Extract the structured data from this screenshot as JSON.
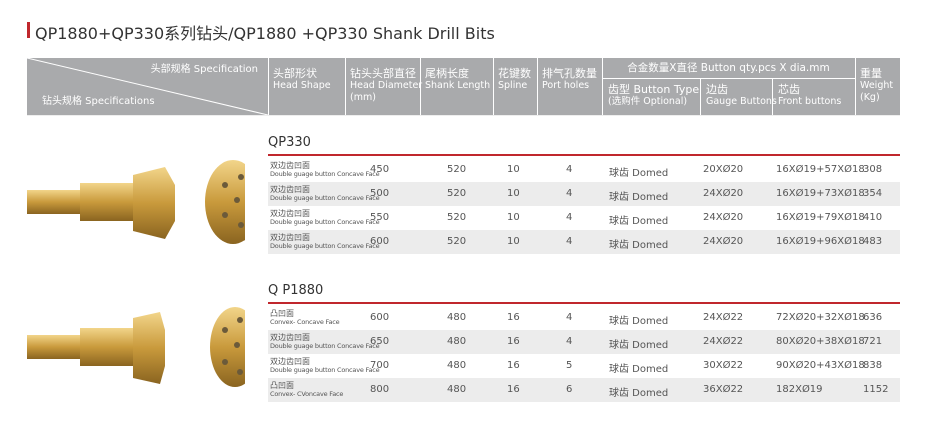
{
  "title": "QP1880+QP330系列钻头/QP1880 +QP330 Shank Drill Bits",
  "header": {
    "corner_top": "头部规格 Specification",
    "corner_bottom": "钻头规格 Specifications",
    "columns": [
      [
        "头部形状",
        "Head Shape"
      ],
      [
        "钻头头部直径",
        "Head Diameter",
        "(mm)"
      ],
      [
        "尾柄长度",
        "Shank Length"
      ],
      [
        "花键数",
        "Spline"
      ],
      [
        "排气孔数量",
        "Port holes"
      ]
    ],
    "group": "合金数量X直径 Button qty.pcs X dia.mm",
    "subcolumns": [
      [
        "齿型 Button Type",
        "(选购件 Optional)"
      ],
      [
        "边齿",
        "Gauge Buttons"
      ],
      [
        "芯齿",
        "Front buttons"
      ]
    ],
    "weight": [
      "重量",
      "Weight",
      "(Kg)"
    ]
  },
  "sections": [
    {
      "name": "QP330",
      "rows": [
        {
          "shape": [
            "双边齿凹面",
            "Double guage button Concave Face"
          ],
          "cells": [
            450,
            520,
            10,
            4,
            "球齿 Domed",
            "20XØ20",
            "16XØ19+57XØ18",
            308
          ]
        },
        {
          "shape": [
            "双边齿凹面",
            "Double guage button Concave Face"
          ],
          "cells": [
            500,
            520,
            10,
            4,
            "球齿 Domed",
            "24XØ20",
            "16XØ19+73XØ18",
            354
          ]
        },
        {
          "shape": [
            "双边齿凹面",
            "Double guage button Concave Face"
          ],
          "cells": [
            550,
            520,
            10,
            4,
            "球齿 Domed",
            "24XØ20",
            "16XØ19+79XØ18",
            410
          ]
        },
        {
          "shape": [
            "双边齿凹面",
            "Double guage button Concave Face"
          ],
          "cells": [
            600,
            520,
            10,
            4,
            "球齿 Domed",
            "24XØ20",
            "16XØ19+96XØ18",
            483
          ]
        }
      ]
    },
    {
      "name": "Q P1880",
      "rows": [
        {
          "shape": [
            "凸凹面",
            "Convex- Concave Face"
          ],
          "cells": [
            600,
            480,
            16,
            4,
            "球齿 Domed",
            "24XØ22",
            "72XØ20+32XØ18",
            636
          ]
        },
        {
          "shape": [
            "双边齿凹面",
            "Double guage button Concave Face"
          ],
          "cells": [
            650,
            480,
            16,
            4,
            "球齿 Domed",
            "24XØ22",
            "80XØ20+38XØ18",
            721
          ]
        },
        {
          "shape": [
            "双边齿凹面",
            "Double guage button Concave Face"
          ],
          "cells": [
            700,
            480,
            16,
            5,
            "球齿 Domed",
            "30XØ22",
            "90XØ20+43XØ18",
            838
          ]
        },
        {
          "shape": [
            "凸凹面",
            "Convex- CVoncave Face"
          ],
          "cells": [
            800,
            480,
            16,
            6,
            "球齿 Domed",
            "36XØ22",
            "182XØ19",
            1152
          ]
        }
      ]
    }
  ]
}
